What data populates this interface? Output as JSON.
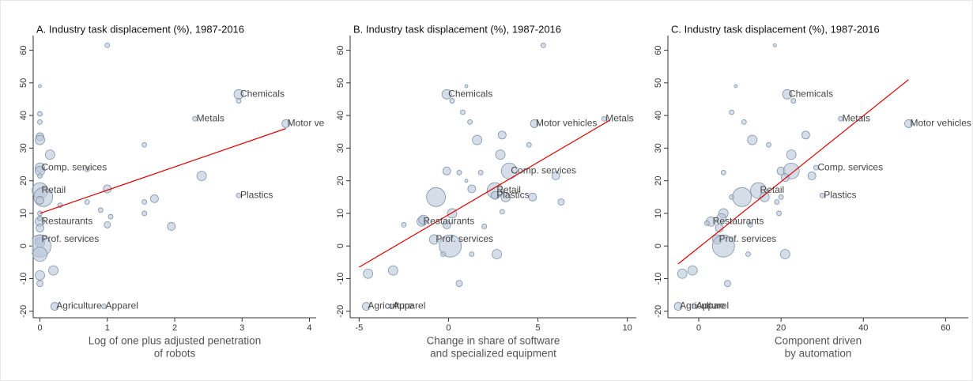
{
  "chart_data": [
    {
      "type": "scatter",
      "title": "A. Industry task displacement (%), 1987-2016",
      "xlabel": [
        "Log of one plus adjusted penetration",
        "of robots"
      ],
      "xlim": [
        -0.1,
        4.1
      ],
      "ylim": [
        -22,
        64.5
      ],
      "xticks": [
        0,
        1,
        2,
        3,
        4
      ],
      "yticks": [
        -20,
        -10,
        0,
        10,
        20,
        30,
        40,
        50,
        60
      ],
      "color": "#b7c7d8",
      "edge_color": "#7f93a8",
      "x": [
        2.95,
        2.3,
        3.65,
        0.0,
        0.0,
        2.95,
        0.0,
        0.0,
        0.22,
        0.95,
        1.0,
        0.0,
        0.0,
        0.0,
        0.0,
        0.0,
        0.15,
        0.0,
        0.0,
        0.7,
        0.05,
        0.0,
        0.3,
        0.0,
        0.0,
        0.0,
        0.0,
        0.0,
        0.0,
        0.0,
        0.0,
        0.2,
        1.0,
        1.55,
        1.7,
        1.55,
        1.55,
        1.05,
        0.9,
        1.0,
        1.95,
        2.4,
        0.7,
        2.95
      ],
      "y": [
        46.5,
        39,
        37.5,
        24,
        17,
        15.5,
        7.5,
        2,
        -18.5,
        -18.5,
        61.5,
        49,
        40.5,
        38,
        33.5,
        32.5,
        28,
        23,
        21.5,
        23.5,
        15,
        14,
        12.5,
        10,
        8.5,
        5.5,
        1,
        0,
        -2.5,
        -9,
        -11.5,
        -7.5,
        17.5,
        31,
        14.5,
        13.5,
        10,
        9,
        11,
        6.5,
        6,
        21.5,
        13.5,
        44.5
      ],
      "sizes": [
        6,
        3,
        5,
        6,
        10,
        3,
        6,
        6,
        5,
        3,
        3,
        2,
        3,
        3,
        5,
        6,
        6,
        6,
        3,
        3,
        12,
        5,
        3,
        3,
        3,
        5,
        6,
        14,
        9,
        6,
        4,
        6,
        5,
        3,
        5,
        3,
        3,
        3,
        3,
        4,
        5,
        6,
        3,
        3
      ],
      "point_labels": [
        "Chemicals",
        "Metals",
        "Motor vehicles",
        "Comp. services",
        "Retail",
        "Plastics",
        "Restaurants",
        "Prof. services",
        "Agriculture",
        "Apparel",
        null,
        null,
        null,
        null,
        null,
        null,
        null,
        null,
        null,
        null,
        null,
        null,
        null,
        null,
        null,
        null,
        null,
        null,
        null,
        null,
        null,
        null,
        null,
        null,
        null,
        null,
        null,
        null,
        null,
        null,
        null,
        null,
        null,
        null
      ],
      "fit": {
        "x": [
          0,
          3.65
        ],
        "y": [
          10,
          36
        ],
        "color": "#e00000"
      }
    },
    {
      "type": "scatter",
      "title": "B. Industry task displacement (%), 1987-2016",
      "xlabel": [
        "Change in share of software",
        "and specialized equipment"
      ],
      "xlim": [
        -5.5,
        10.5
      ],
      "ylim": [
        -22,
        64.5
      ],
      "xticks": [
        -5,
        0,
        5,
        10
      ],
      "yticks": [
        -20,
        -10,
        0,
        10,
        20,
        30,
        40,
        50,
        60
      ],
      "color": "#b7c7d8",
      "edge_color": "#7f93a8",
      "x": [
        -0.1,
        8.7,
        4.8,
        3.4,
        2.6,
        2.6,
        -1.5,
        -0.8,
        -4.6,
        -3.2,
        5.3,
        1.0,
        0.2,
        0.8,
        1.2,
        1.6,
        3.0,
        4.5,
        2.9,
        -0.1,
        0.6,
        1.8,
        1.0,
        6.0,
        -0.7,
        1.3,
        3.2,
        4.7,
        6.3,
        0.2,
        -0.1,
        -2.5,
        3.0,
        2.0,
        0.1,
        1.3,
        2.7,
        -0.3,
        -4.5,
        -3.1,
        0.6,
        -1.4
      ],
      "y": [
        46.5,
        39,
        37.5,
        23,
        17,
        15.5,
        7.5,
        2,
        -18.5,
        -18.5,
        61.5,
        49,
        44.5,
        41,
        38,
        32.5,
        34,
        31,
        28,
        23,
        22.5,
        22.5,
        20,
        21.5,
        15,
        17.5,
        15,
        15,
        13.5,
        10,
        6.5,
        6.5,
        10.5,
        6,
        0,
        -2.5,
        -2.5,
        -2.5,
        -8.5,
        -7.5,
        -11.5,
        8
      ],
      "sizes": [
        6,
        3,
        5,
        10,
        10,
        5,
        6,
        6,
        5,
        3,
        3,
        2,
        3,
        3,
        3,
        6,
        5,
        3,
        6,
        5,
        3,
        3,
        2,
        5,
        12,
        5,
        6,
        5,
        4,
        6,
        5,
        3,
        3,
        3,
        14,
        3,
        6,
        3,
        6,
        6,
        4,
        6
      ],
      "point_labels": [
        "Chemicals",
        "Metals",
        "Motor vehicles",
        "Comp. services",
        "Retail",
        "Plastics",
        "Restaurants",
        "Prof. services",
        "Agriculture",
        "Apparel",
        null,
        null,
        null,
        null,
        null,
        null,
        null,
        null,
        null,
        null,
        null,
        null,
        null,
        null,
        null,
        null,
        null,
        null,
        null,
        null,
        null,
        null,
        null,
        null,
        null,
        null,
        null,
        null,
        null,
        null,
        null,
        null
      ],
      "fit": {
        "x": [
          -5,
          9
        ],
        "y": [
          -6.5,
          38.5
        ],
        "color": "#e00000"
      }
    },
    {
      "type": "scatter",
      "title": "C. Industry task displacement (%), 1987-2016",
      "xlabel": [
        "Component driven",
        "by automation"
      ],
      "xlim": [
        -7.5,
        65.5
      ],
      "ylim": [
        -22,
        64.5
      ],
      "xticks": [
        0,
        20,
        40,
        60
      ],
      "yticks": [
        -20,
        -10,
        0,
        10,
        20,
        30,
        40,
        50,
        60
      ],
      "color": "#b7c7d8",
      "edge_color": "#7f93a8",
      "x": [
        21.5,
        34.5,
        51,
        28.5,
        14.5,
        30,
        3,
        4.5,
        -5,
        -1,
        18.5,
        9,
        23,
        8,
        11,
        13,
        26,
        17,
        22.5,
        6,
        20,
        22.5,
        21,
        27.5,
        8,
        10.5,
        16,
        19,
        20,
        19.5,
        6,
        2,
        5,
        12.5,
        6,
        12,
        21,
        -4,
        -1.5,
        7,
        5.5
      ],
      "y": [
        46.5,
        39,
        37.5,
        24,
        17,
        15.5,
        7.5,
        2,
        -18.5,
        -18.5,
        61.5,
        49,
        44.5,
        41,
        38,
        32.5,
        34,
        31,
        28,
        22.5,
        23,
        23,
        21,
        21.5,
        15,
        15,
        15,
        13.5,
        15,
        10,
        10,
        7,
        5.5,
        6.5,
        0,
        -2.5,
        -2.5,
        -8.5,
        -7.5,
        -11.5,
        8.5
      ],
      "sizes": [
        6,
        3,
        5,
        3,
        10,
        3,
        6,
        6,
        5,
        3,
        2,
        2,
        3,
        3,
        3,
        6,
        5,
        3,
        6,
        3,
        5,
        10,
        5,
        5,
        3,
        12,
        6,
        3,
        3,
        3,
        6,
        3,
        5,
        3,
        14,
        3,
        6,
        6,
        6,
        4,
        6
      ],
      "point_labels": [
        "Chemicals",
        "Metals",
        "Motor vehicles",
        "Comp. services",
        "Retail",
        "Plastics",
        "Restaurants",
        "Prof. services",
        "Agriculture",
        "Apparel",
        null,
        null,
        null,
        null,
        null,
        null,
        null,
        null,
        null,
        null,
        null,
        null,
        null,
        null,
        null,
        null,
        null,
        null,
        null,
        null,
        null,
        null,
        null,
        null,
        null,
        null,
        null,
        null,
        null,
        null,
        null
      ],
      "fit": {
        "x": [
          -5,
          51
        ],
        "y": [
          -5.5,
          51
        ],
        "color": "#e00000"
      }
    }
  ]
}
